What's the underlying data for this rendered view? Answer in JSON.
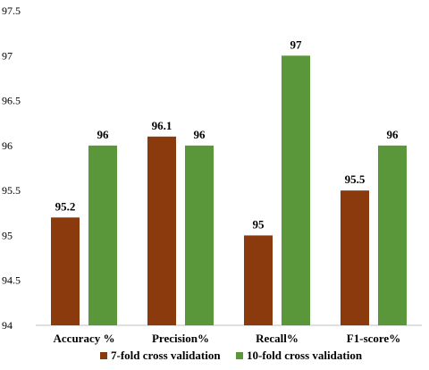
{
  "chart_data": {
    "type": "bar",
    "categories": [
      "Accuracy %",
      "Precision%",
      "Recall%",
      "F1-score%"
    ],
    "series": [
      {
        "name": "7-fold cross validation",
        "values": [
          95.2,
          96.1,
          95,
          95.5
        ],
        "color": "#8B3A0E"
      },
      {
        "name": "10-fold cross validation",
        "values": [
          96,
          96,
          97,
          96
        ],
        "color": "#5A963A"
      }
    ],
    "ylim": [
      94,
      97.5
    ],
    "yticks": [
      "94",
      "94.5",
      "95",
      "95.5",
      "96",
      "96.5",
      "97",
      "97.5"
    ],
    "data_labels": [
      [
        "95.2",
        "96.1",
        "95",
        "95.5"
      ],
      [
        "96",
        "96",
        "97",
        "96"
      ]
    ],
    "grid": false,
    "legend_position": "bottom"
  }
}
